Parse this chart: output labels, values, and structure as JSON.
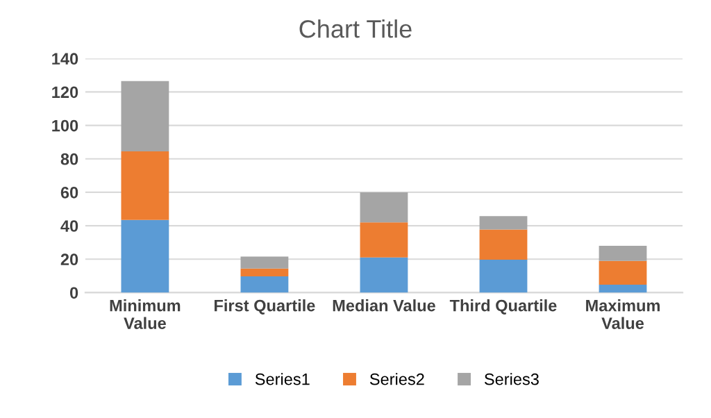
{
  "chart_data": {
    "type": "bar",
    "title": "Chart Title",
    "stacked": true,
    "categories": [
      "Minimum\nValue",
      "First Quartile",
      "Median Value",
      "Third Quartile",
      "Maximum\nValue"
    ],
    "series": [
      {
        "name": "Series1",
        "color": "#5b9bd5",
        "values": [
          43.5,
          9.7,
          21,
          19.7,
          4.7
        ]
      },
      {
        "name": "Series2",
        "color": "#ed7d31",
        "values": [
          41,
          4.7,
          21,
          18,
          14.3
        ]
      },
      {
        "name": "Series3",
        "color": "#a5a5a5",
        "values": [
          42,
          7.2,
          18,
          8,
          9
        ]
      }
    ],
    "ylim": [
      0,
      140
    ],
    "yticks": [
      0,
      20,
      40,
      60,
      80,
      100,
      120,
      140
    ],
    "grid": "y",
    "legend": "bottom"
  }
}
